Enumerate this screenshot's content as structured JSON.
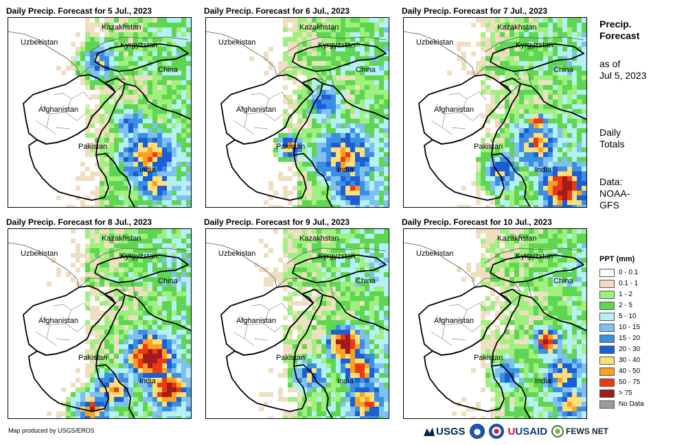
{
  "panels": [
    {
      "title": "Daily Precip. Forecast for 5 Jul., 2023",
      "day": "5 Jul., 2023"
    },
    {
      "title": "Daily Precip. Forecast for 6 Jul., 2023",
      "day": "6 Jul., 2023"
    },
    {
      "title": "Daily Precip. Forecast for 7 Jul., 2023",
      "day": "7 Jul., 2023"
    },
    {
      "title": "Daily Precip. Forecast for 8 Jul., 2023",
      "day": "8 Jul., 2023"
    },
    {
      "title": "Daily Precip. Forecast for 9 Jul., 2023",
      "day": "9 Jul., 2023"
    },
    {
      "title": "Daily Precip. Forecast for 10 Jul., 2023",
      "day": "10 Jul., 2023"
    }
  ],
  "country_labels": {
    "kazakhstan": "Kazakhstan",
    "uzbekistan": "Uzbekistan",
    "kyrgyzstan": "Kyrgyzstan",
    "china": "China",
    "afghanistan": "Afghanistan",
    "pakistan": "Pakistan",
    "india": "India"
  },
  "sidebar": {
    "title_line1": "Precip.",
    "title_line2": "Forecast",
    "asof_line1": "as of",
    "asof_line2": "Jul 5, 2023",
    "daily_line1": "Daily",
    "daily_line2": "Totals",
    "data_line1": "Data:",
    "data_line2": "NOAA-",
    "data_line3": "GFS"
  },
  "legend": {
    "title": "PPT (mm)",
    "classes": [
      {
        "label": "0 - 0.1",
        "color": "#ffffff"
      },
      {
        "label": "0.1 - 1",
        "color": "#eedfc0"
      },
      {
        "label": "1 - 2",
        "color": "#9ff07e"
      },
      {
        "label": "2 - 5",
        "color": "#5ed651"
      },
      {
        "label": "5 - 10",
        "color": "#b4f0f5"
      },
      {
        "label": "10 - 15",
        "color": "#7fc0f2"
      },
      {
        "label": "15 - 20",
        "color": "#3a8fe3"
      },
      {
        "label": "20 - 30",
        "color": "#1a5fd4"
      },
      {
        "label": "30 - 40",
        "color": "#fddf76"
      },
      {
        "label": "40 - 50",
        "color": "#fba020"
      },
      {
        "label": "50 - 75",
        "color": "#f03810"
      },
      {
        "label": "> 75",
        "color": "#a31c1c"
      },
      {
        "label": "No Data",
        "color": "#9c9c9c"
      }
    ]
  },
  "credit": "Map produced by USGS/EROS",
  "logos": {
    "usgs": "USGS",
    "usaid": "USAID",
    "fews": "FEWS NET"
  }
}
